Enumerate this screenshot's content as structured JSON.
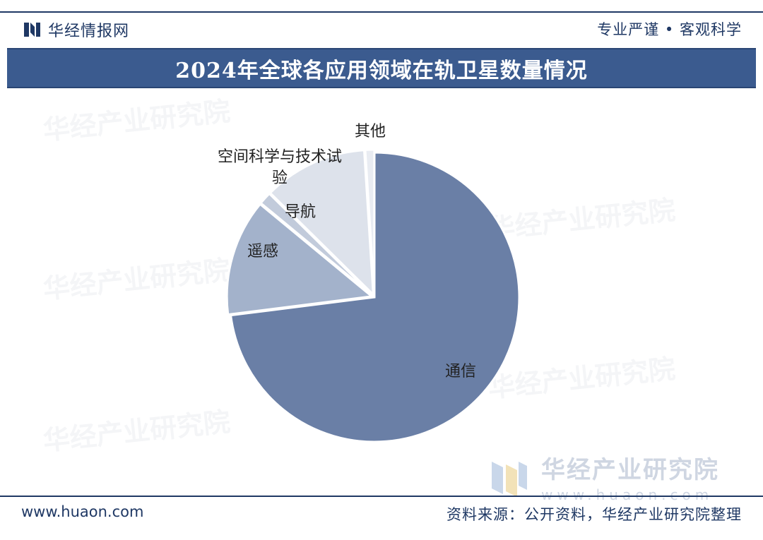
{
  "header": {
    "brand": "华经情报网",
    "slogan": "专业严谨 • 客观科学",
    "title": "2024年全球各应用领域在轨卫星数量情况"
  },
  "watermark": {
    "text": "华经产业研究院",
    "logo_name": "华经产业研究院",
    "logo_url": "www.huaon.com"
  },
  "footer": {
    "url": "www.huaon.com",
    "source": "资料来源：公开资料，华经产业研究院整理"
  },
  "colors": {
    "navy": "#1f3864",
    "title_bar": "#3b5b8f"
  },
  "chart_data": {
    "type": "pie",
    "start_angle_deg": 0,
    "direction": "clockwise",
    "slices": [
      {
        "label": "通信",
        "value": 73.0,
        "color": "#6a7fa6"
      },
      {
        "label": "遥感",
        "value": 13.0,
        "color": "#a3b2cb"
      },
      {
        "label": "导航",
        "value": 1.4,
        "color": "#c2cbdb"
      },
      {
        "label": "空间科学与技术试验",
        "value": 11.6,
        "color": "#dde2eb"
      },
      {
        "label": "其他",
        "value": 1.0,
        "color": "#e9ecf2"
      }
    ]
  }
}
